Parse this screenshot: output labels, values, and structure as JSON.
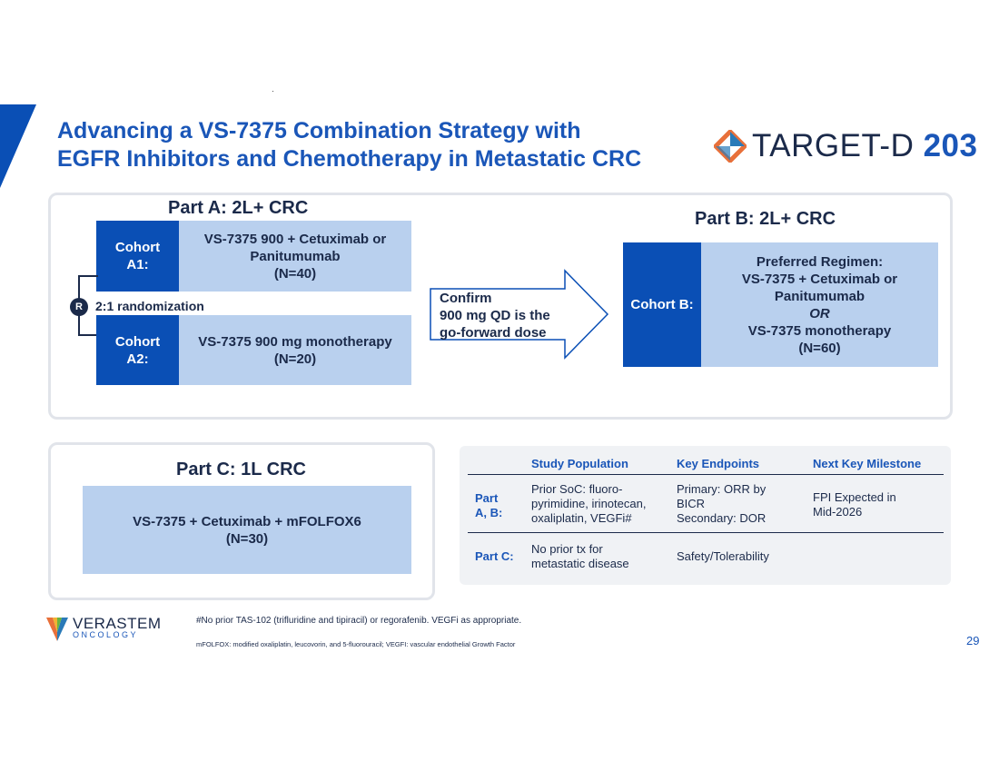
{
  "title": {
    "line1": "Advancing a VS-7375 Combination Strategy with",
    "line2": "EGFR Inhibitors and Chemotherapy in Metastatic CRC"
  },
  "logo": {
    "text": "TARGET-D",
    "number": "203"
  },
  "part_a": {
    "heading": "Part A: 2L+ CRC",
    "cohort_a1": {
      "label_1": "Cohort",
      "label_2": "A1:",
      "line1": "VS-7375 900 + Cetuximab or",
      "line2": "Panitumumab",
      "line3": "(N=40)"
    },
    "randomization": "2:1 randomization",
    "r_badge": "R",
    "cohort_a2": {
      "label_1": "Cohort",
      "label_2": "A2:",
      "line1": "VS-7375 900 mg monotherapy",
      "line2": "(N=20)"
    }
  },
  "arrow": {
    "line1": "Confirm",
    "line2": "900 mg QD is the",
    "line3": "go-forward dose"
  },
  "part_b": {
    "heading": "Part B: 2L+ CRC",
    "label": "Cohort B:",
    "line1": "Preferred Regimen:",
    "line2": "VS-7375 + Cetuximab or",
    "line3": "Panitumumab",
    "line4": "OR",
    "line5": "VS-7375 monotherapy",
    "line6": "(N=60)"
  },
  "part_c": {
    "heading": "Part C: 1L CRC",
    "line1": "VS-7375 + Cetuximab + mFOLFOX6",
    "line2": "(N=30)"
  },
  "table": {
    "headers": [
      "Study Population",
      "Key Endpoints",
      "Next Key Milestone"
    ],
    "rows": [
      {
        "label_1": "Part",
        "label_2": "A, B:",
        "population": [
          "Prior SoC: fluoro-",
          "pyrimidine, irinotecan,",
          "oxaliplatin, VEGFi#"
        ],
        "endpoints": [
          "Primary: ORR by",
          "BICR",
          "Secondary: DOR"
        ],
        "milestone": [
          "FPI Expected in",
          "Mid-2026"
        ]
      },
      {
        "label_1": "Part C:",
        "population": [
          "No prior tx for",
          "metastatic disease"
        ],
        "endpoints": [
          "Safety/Tolerability"
        ],
        "milestone": []
      }
    ]
  },
  "footer": {
    "brand": "VERASTEM",
    "brand_sub": "ONCOLOGY",
    "note1": "#No prior TAS-102 (trifluridine and tipiracil) or regorafenib.  VEGFi as appropriate.",
    "note2": "mFOLFOX: modified oxaliplatin, leucovorin, and 5-fluorouracil; VEGFI: vascular endothelial Growth Factor",
    "page": "29"
  },
  "colors": {
    "primary_blue": "#0a4fb5",
    "light_blue": "#b9d0ee",
    "title_blue": "#1a56b8",
    "navy": "#1b2a4a",
    "logo_orange": "#e8703a"
  }
}
